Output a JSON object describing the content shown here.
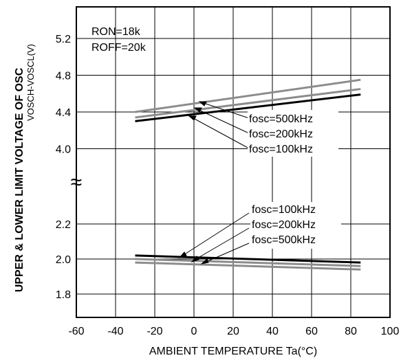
{
  "chart_data": {
    "type": "line",
    "title": "",
    "ylabel_line1": "UPPER & LOWER LIMIT  VOLTAGE OF OSC",
    "ylabel_line2": "VOSCH-VOSCL(V)",
    "xlabel": "AMBIENT TEMPERATURE Ta(°C)",
    "xlim": [
      -60,
      100
    ],
    "x_ticks": [
      -60,
      -40,
      -20,
      0,
      20,
      40,
      60,
      80,
      100
    ],
    "x_tick_labels": [
      "-60",
      "-40",
      "-20",
      "0",
      "20",
      "40",
      "60",
      "80",
      "100"
    ],
    "y_ticks_upper": [
      "5.2",
      "4.8",
      "4.4",
      "4.0"
    ],
    "y_ticks_lower": [
      "2.2",
      "2.0",
      "1.8"
    ],
    "axis_break": "≈",
    "conditions": [
      "RON=18k",
      "ROFF=20k"
    ],
    "grid": true,
    "series": [
      {
        "name": "fosc=500kHz",
        "group": "upper",
        "color": "#8c8c8c",
        "x": [
          -30,
          85
        ],
        "y": [
          4.4,
          4.75
        ]
      },
      {
        "name": "fosc=200kHz",
        "group": "upper",
        "color": "#8c8c8c",
        "x": [
          -30,
          85
        ],
        "y": [
          4.34,
          4.65
        ]
      },
      {
        "name": "fosc=100kHz",
        "group": "upper",
        "color": "#000000",
        "x": [
          -30,
          85
        ],
        "y": [
          4.3,
          4.59
        ]
      },
      {
        "name": "fosc=100kHz",
        "group": "lower",
        "color": "#000000",
        "x": [
          -30,
          85
        ],
        "y": [
          2.02,
          1.98
        ]
      },
      {
        "name": "fosc=200kHz",
        "group": "lower",
        "color": "#8c8c8c",
        "x": [
          -30,
          85
        ],
        "y": [
          2.0,
          1.96
        ]
      },
      {
        "name": "fosc=500kHz",
        "group": "lower",
        "color": "#8c8c8c",
        "x": [
          -30,
          85
        ],
        "y": [
          1.98,
          1.94
        ]
      }
    ],
    "annotations_upper": [
      "fosc=500kHz",
      "fosc=200kHz",
      "fosc=100kHz"
    ],
    "annotations_lower": [
      "fosc=100kHz",
      "fosc=200kHz",
      "fosc=500kHz"
    ]
  }
}
